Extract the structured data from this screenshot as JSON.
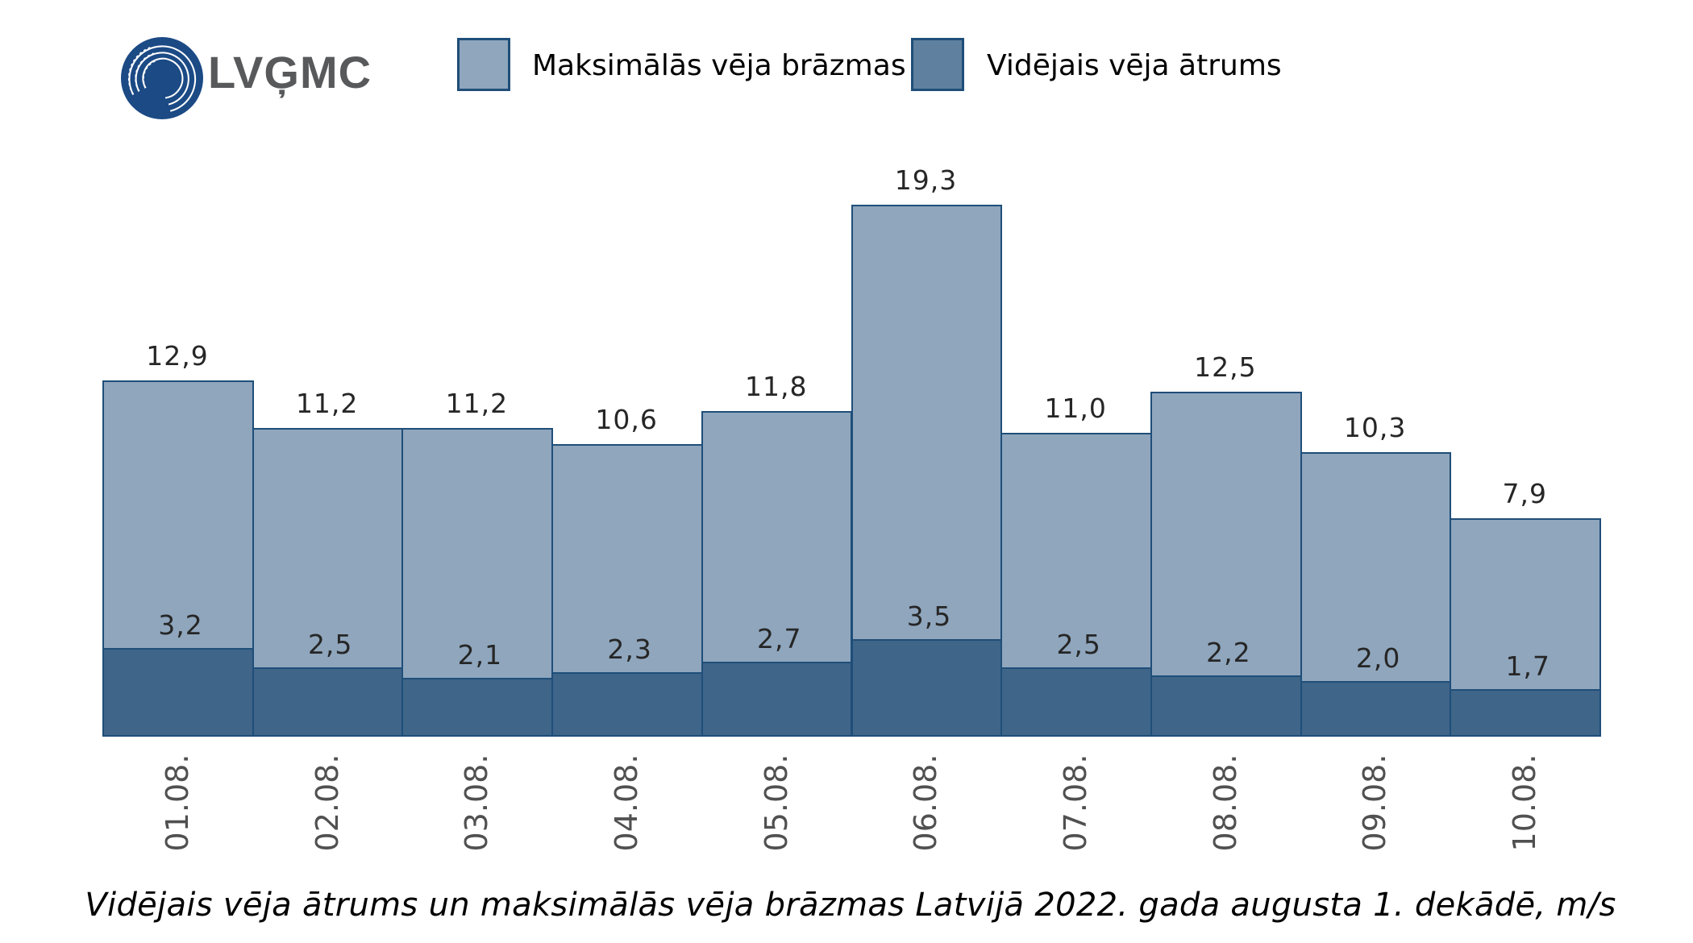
{
  "logo": {
    "text": "LVĢMC",
    "icon": "lvgmc-logo-icon",
    "color": "#1b4a85",
    "text_color": "#58595b"
  },
  "legend": [
    {
      "label": "Maksimālās vēja brāzmas",
      "color": "#8fa6bd"
    },
    {
      "label": "Vidējais vēja ātrums",
      "color": "#5f809f"
    }
  ],
  "colors": {
    "max_fill": "#8fa6bd",
    "avg_fill": "#3f6589",
    "border": "#1f4e79"
  },
  "chart_data": {
    "type": "bar",
    "title": "Vidējais vēja ātrums un maksimālās vēja brāzmas Latvijā 2022. gada augusta 1. dekādē, m/s",
    "xlabel": "",
    "ylabel": "m/s",
    "categories": [
      "01.08.",
      "02.08.",
      "03.08.",
      "04.08.",
      "05.08.",
      "06.08.",
      "07.08.",
      "08.08.",
      "09.08.",
      "10.08."
    ],
    "series": [
      {
        "name": "Maksimālās vēja brāzmas",
        "values": [
          12.9,
          11.2,
          11.2,
          10.6,
          11.8,
          19.3,
          11.0,
          12.5,
          10.3,
          7.9
        ],
        "labels": [
          "12,9",
          "11,2",
          "11,2",
          "10,6",
          "11,8",
          "19,3",
          "11,0",
          "12,5",
          "10,3",
          "7,9"
        ]
      },
      {
        "name": "Vidējais vēja ātrums",
        "values": [
          3.2,
          2.5,
          2.1,
          2.3,
          2.7,
          3.5,
          2.5,
          2.2,
          2.0,
          1.7
        ],
        "labels": [
          "3,2",
          "2,5",
          "2,1",
          "2,3",
          "2,7",
          "3,5",
          "2,5",
          "2,2",
          "2,0",
          "1,7"
        ]
      }
    ],
    "overlapping": true,
    "ylim": [
      0,
      20
    ],
    "grid": false,
    "legend_position": "top",
    "y_axis_visible": false
  }
}
